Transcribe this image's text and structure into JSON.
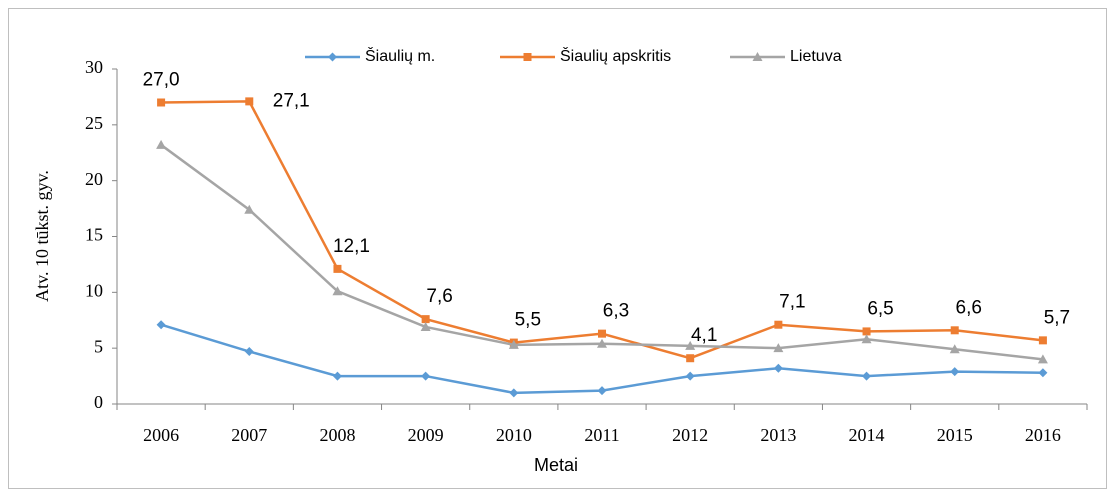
{
  "chart_data": {
    "type": "line",
    "y_label": "Atv. 10 tūkst. gyv.",
    "x_label": "Metai",
    "categories": [
      "2006",
      "2007",
      "2008",
      "2009",
      "2010",
      "2011",
      "2012",
      "2013",
      "2014",
      "2015",
      "2016"
    ],
    "series": [
      {
        "name": "Šiaulių m.",
        "color": "#5b9bd5",
        "marker": "diamond",
        "values": [
          7.1,
          4.7,
          2.5,
          2.5,
          1.0,
          1.2,
          2.5,
          3.2,
          2.5,
          2.9,
          2.8
        ]
      },
      {
        "name": "Šiaulių apskritis",
        "color": "#ed7d31",
        "marker": "square",
        "values": [
          27.0,
          27.1,
          12.1,
          7.6,
          5.5,
          6.3,
          4.1,
          7.1,
          6.5,
          6.6,
          5.7
        ],
        "value_labels": [
          "27,0",
          "27,1",
          "12,1",
          "7,6",
          "5,5",
          "6,3",
          "4,1",
          "7,1",
          "6,5",
          "6,6",
          "5,7"
        ]
      },
      {
        "name": "Lietuva",
        "color": "#a5a5a5",
        "marker": "triangle",
        "values": [
          23.2,
          17.4,
          10.1,
          6.9,
          5.3,
          5.4,
          5.2,
          5.0,
          5.8,
          4.9,
          4.0
        ]
      }
    ],
    "ylim": [
      0,
      30
    ],
    "yticks": [
      0,
      5,
      10,
      15,
      20,
      25,
      30
    ],
    "grid": false
  }
}
